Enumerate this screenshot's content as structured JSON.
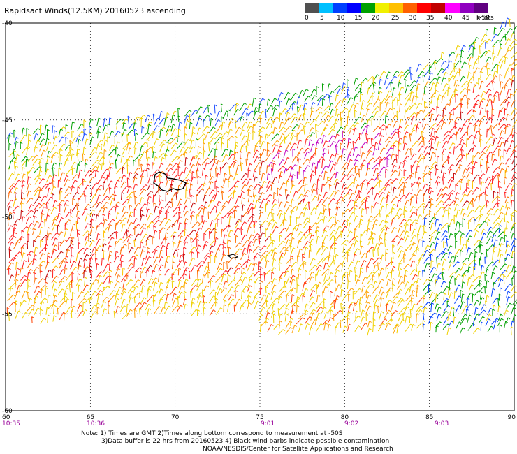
{
  "title": "Rapidsact Winds(12.5KM) 20160523 ascending",
  "legend": {
    "colors": [
      "#505050",
      "#00c0ff",
      "#0040ff",
      "#0000ff",
      "#00a000",
      "#f0f000",
      "#ffc000",
      "#ff6000",
      "#ff0000",
      "#c00000",
      "#ff00ff",
      "#9000c0",
      "#600080"
    ],
    "labels": [
      "0",
      "5",
      "10",
      "15",
      "20",
      "25",
      "30",
      "35",
      "40",
      "45",
      ">50"
    ],
    "units": "knots"
  },
  "map": {
    "lon_ticks": [
      "60",
      "65",
      "70",
      "75",
      "80",
      "85",
      "90"
    ],
    "lat_ticks": [
      "-40",
      "-45",
      "-50",
      "-55",
      "-60"
    ],
    "times": [
      "10:35",
      "10:36",
      "9:01",
      "9:02",
      "9:03"
    ],
    "grid": true
  },
  "note": {
    "line1": "Note: 1) Times are GMT 2)Times along bottom correspond to measurement at -50S",
    "line2": "3)Data buffer is 22 hrs from 20160523 4) Black wind barbs indicate possible contamination",
    "line3": "NOAA/NESDIS/Center for Satellite Applications and Research"
  }
}
